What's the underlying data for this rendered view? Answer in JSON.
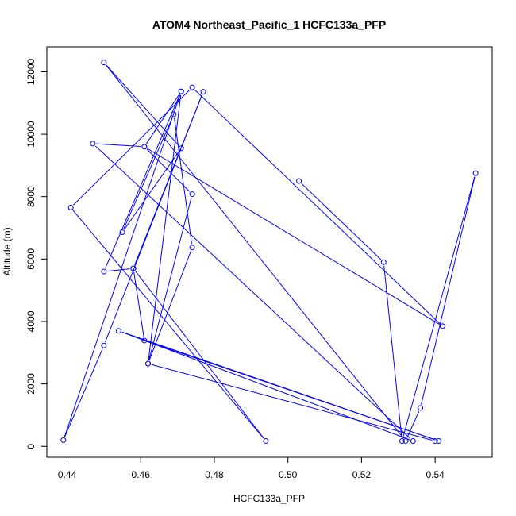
{
  "chart_data": {
    "type": "line",
    "title": "ATOM4 Northeast_Pacific_1 HCFC133a_PFP",
    "xlabel": "HCFC133a_PFP",
    "ylabel": "Altitude (m)",
    "xlim": [
      0.4345,
      0.5555
    ],
    "ylim": [
      -350,
      12800
    ],
    "xticks": [
      0.44,
      0.46,
      0.48,
      0.5,
      0.52,
      0.54
    ],
    "xtick_labels": [
      "0.44",
      "0.46",
      "0.48",
      "0.50",
      "0.52",
      "0.54"
    ],
    "yticks": [
      0,
      2000,
      4000,
      6000,
      8000,
      10000,
      12000
    ],
    "ytick_labels": [
      "0",
      "2000",
      "4000",
      "6000",
      "8000",
      "10000",
      "12000"
    ],
    "grid": false,
    "legend": "none",
    "marker": "open-circle",
    "color": "#0000ff",
    "series": [
      {
        "x": [
          0.503,
          0.526,
          0.531,
          0.551,
          0.536,
          0.532,
          0.45,
          0.471,
          0.455,
          0.469,
          0.474,
          0.462,
          0.474,
          0.461,
          0.471,
          0.439,
          0.45,
          0.477,
          0.458,
          0.461,
          0.541,
          0.454,
          0.534,
          0.447,
          0.461,
          0.542,
          0.474,
          0.441,
          0.494,
          0.458,
          0.45,
          0.471,
          0.462,
          0.54
        ],
        "y": [
          8500,
          5900,
          170,
          8750,
          1230,
          170,
          12300,
          9550,
          6860,
          10640,
          6370,
          2650,
          8080,
          9600,
          11370,
          200,
          3230,
          11360,
          5700,
          3390,
          170,
          3700,
          170,
          9700,
          9600,
          3850,
          11500,
          7650,
          170,
          5700,
          5600,
          11370,
          2650,
          170
        ]
      }
    ]
  }
}
